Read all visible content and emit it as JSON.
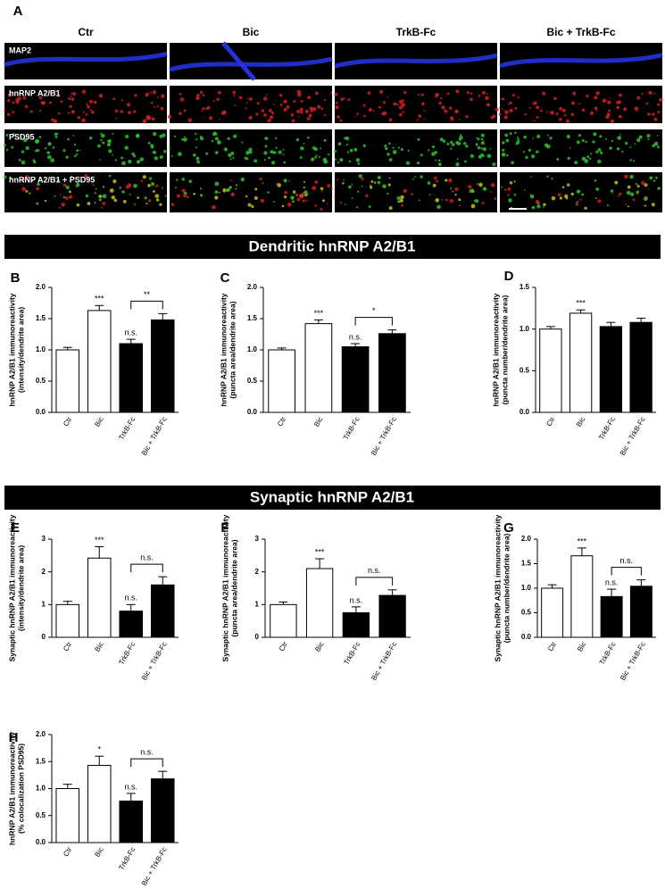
{
  "panel_a": {
    "letter": "A",
    "columns": [
      "Ctr",
      "Bic",
      "TrkB-Fc",
      "Bic + TrkB-Fc"
    ],
    "rows": [
      "MAP2",
      "hnRNP A2/B1",
      "PSD95",
      "hnRNP A2/B1 + PSD95"
    ]
  },
  "sections": [
    "Dendritic hnRNP A2/B1",
    "Synaptic hnRNP A2/B1"
  ],
  "chart_data": [
    {
      "type": "bar",
      "panel": "B",
      "ylabel": [
        "hnRNP A2/B1 immunoreactivity",
        "(intensity/dendrite area)"
      ],
      "categories": [
        "Ctr",
        "Bic",
        "TrkB-Fc",
        "Bic + TrkB-Fc"
      ],
      "values": [
        1.0,
        1.63,
        1.1,
        1.48
      ],
      "errors": [
        0.04,
        0.08,
        0.07,
        0.1
      ],
      "colors": [
        "#ffffff",
        "#ffffff",
        "#000000",
        "#000000"
      ],
      "ylim": [
        0,
        2
      ],
      "yticks": [
        {
          "value": 0,
          "label": "0.0"
        },
        {
          "value": 0.5,
          "label": "0.5"
        },
        {
          "value": 1,
          "label": "1.0"
        },
        {
          "value": 1.5,
          "label": "1.5"
        },
        {
          "value": 2,
          "label": "2.0"
        }
      ],
      "significance": [
        null,
        "***",
        "n.s.",
        null
      ],
      "bracket": "**"
    },
    {
      "type": "bar",
      "panel": "C",
      "ylabel": [
        "hnRNP A2/B1 immunoreactivity",
        "(puncta area/dendrite area)"
      ],
      "categories": [
        "Ctr",
        "Bic",
        "TrkB-Fc",
        "Bic + TrkB-Fc"
      ],
      "values": [
        1.0,
        1.42,
        1.05,
        1.26
      ],
      "errors": [
        0.03,
        0.06,
        0.05,
        0.06
      ],
      "colors": [
        "#ffffff",
        "#ffffff",
        "#000000",
        "#000000"
      ],
      "ylim": [
        0,
        2
      ],
      "yticks": [
        {
          "value": 0,
          "label": "0.0"
        },
        {
          "value": 0.5,
          "label": "0.5"
        },
        {
          "value": 1,
          "label": "1.0"
        },
        {
          "value": 1.5,
          "label": "1.5"
        },
        {
          "value": 2,
          "label": "2.0"
        }
      ],
      "significance": [
        null,
        "***",
        "n.s.",
        null
      ],
      "bracket": "*"
    },
    {
      "type": "bar",
      "panel": "D",
      "ylabel": [
        "hnRNP A2/B1 immunoreactivity",
        "(puncta number/dendrite area)"
      ],
      "categories": [
        "Ctr",
        "Bic",
        "TrkB-Fc",
        "Bic + TrkB-Fc"
      ],
      "values": [
        1.0,
        1.19,
        1.03,
        1.08
      ],
      "errors": [
        0.03,
        0.04,
        0.05,
        0.05
      ],
      "colors": [
        "#ffffff",
        "#ffffff",
        "#000000",
        "#000000"
      ],
      "ylim": [
        0,
        1.5
      ],
      "yticks": [
        {
          "value": 0,
          "label": "0.0"
        },
        {
          "value": 0.5,
          "label": "0.5"
        },
        {
          "value": 1,
          "label": "1.0"
        },
        {
          "value": 1.5,
          "label": "1.5"
        }
      ],
      "significance": [
        null,
        "***",
        null,
        null
      ]
    },
    {
      "type": "bar",
      "panel": "E",
      "ylabel": [
        "Synaptic hnRNP A2/B1 immunoreactivity",
        "(intensity/dendrite area)"
      ],
      "categories": [
        "Ctr",
        "Bic",
        "TrkB-Fc",
        "Bic + TrkB-Fc"
      ],
      "values": [
        1.0,
        2.42,
        0.8,
        1.6
      ],
      "errors": [
        0.1,
        0.35,
        0.2,
        0.25
      ],
      "colors": [
        "#ffffff",
        "#ffffff",
        "#000000",
        "#000000"
      ],
      "ylim": [
        0,
        3
      ],
      "yticks": [
        0,
        1,
        2,
        3
      ],
      "significance": [
        null,
        "***",
        "n.s.",
        null
      ],
      "bracket": "n.s."
    },
    {
      "type": "bar",
      "panel": "F",
      "ylabel": [
        "Synaptic hnRNP A2/B1 immunoreactivity",
        "(puncta area/dendrite area)"
      ],
      "categories": [
        "Ctr",
        "Bic",
        "TrkB-Fc",
        "Bic + TrkB-Fc"
      ],
      "values": [
        1.0,
        2.1,
        0.75,
        1.28
      ],
      "errors": [
        0.08,
        0.3,
        0.18,
        0.17
      ],
      "colors": [
        "#ffffff",
        "#ffffff",
        "#000000",
        "#000000"
      ],
      "ylim": [
        0,
        3
      ],
      "yticks": [
        0,
        1,
        2,
        3
      ],
      "significance": [
        null,
        "***",
        "n.s.",
        null
      ],
      "bracket": "n.s."
    },
    {
      "type": "bar",
      "panel": "G",
      "ylabel": [
        "Synaptic hnRNP A2/B1 immunoreactivity",
        "(puncta number/dendrite area)"
      ],
      "categories": [
        "Ctr",
        "Bic",
        "TrkB-Fc",
        "Bic + TrkB-Fc"
      ],
      "values": [
        1.0,
        1.66,
        0.83,
        1.04
      ],
      "errors": [
        0.07,
        0.16,
        0.15,
        0.13
      ],
      "colors": [
        "#ffffff",
        "#ffffff",
        "#000000",
        "#000000"
      ],
      "ylim": [
        0,
        2
      ],
      "yticks": [
        {
          "value": 0,
          "label": "0.0"
        },
        {
          "value": 0.5,
          "label": "0.5"
        },
        {
          "value": 1,
          "label": "1.0"
        },
        {
          "value": 1.5,
          "label": "1.5"
        },
        {
          "value": 2,
          "label": "2.0"
        }
      ],
      "significance": [
        null,
        "***",
        "n.s.",
        null
      ],
      "bracket": "n.s."
    },
    {
      "type": "bar",
      "panel": "H",
      "ylabel": [
        "hnRNP A2/B1 immunoreactivity",
        "(% colocalization PSD95)"
      ],
      "categories": [
        "Ctr",
        "Bic",
        "TrkB-Fc",
        "Bic + TrkB-Fc"
      ],
      "values": [
        1.0,
        1.43,
        0.77,
        1.18
      ],
      "errors": [
        0.08,
        0.17,
        0.14,
        0.14
      ],
      "colors": [
        "#ffffff",
        "#ffffff",
        "#000000",
        "#000000"
      ],
      "ylim": [
        0,
        2
      ],
      "yticks": [
        {
          "value": 0,
          "label": "0.0"
        },
        {
          "value": 0.5,
          "label": "0.5"
        },
        {
          "value": 1,
          "label": "1.0"
        },
        {
          "value": 1.5,
          "label": "1.5"
        },
        {
          "value": 2,
          "label": "2.0"
        }
      ],
      "significance": [
        null,
        "*",
        "n.s.",
        null
      ],
      "bracket": "n.s."
    }
  ]
}
